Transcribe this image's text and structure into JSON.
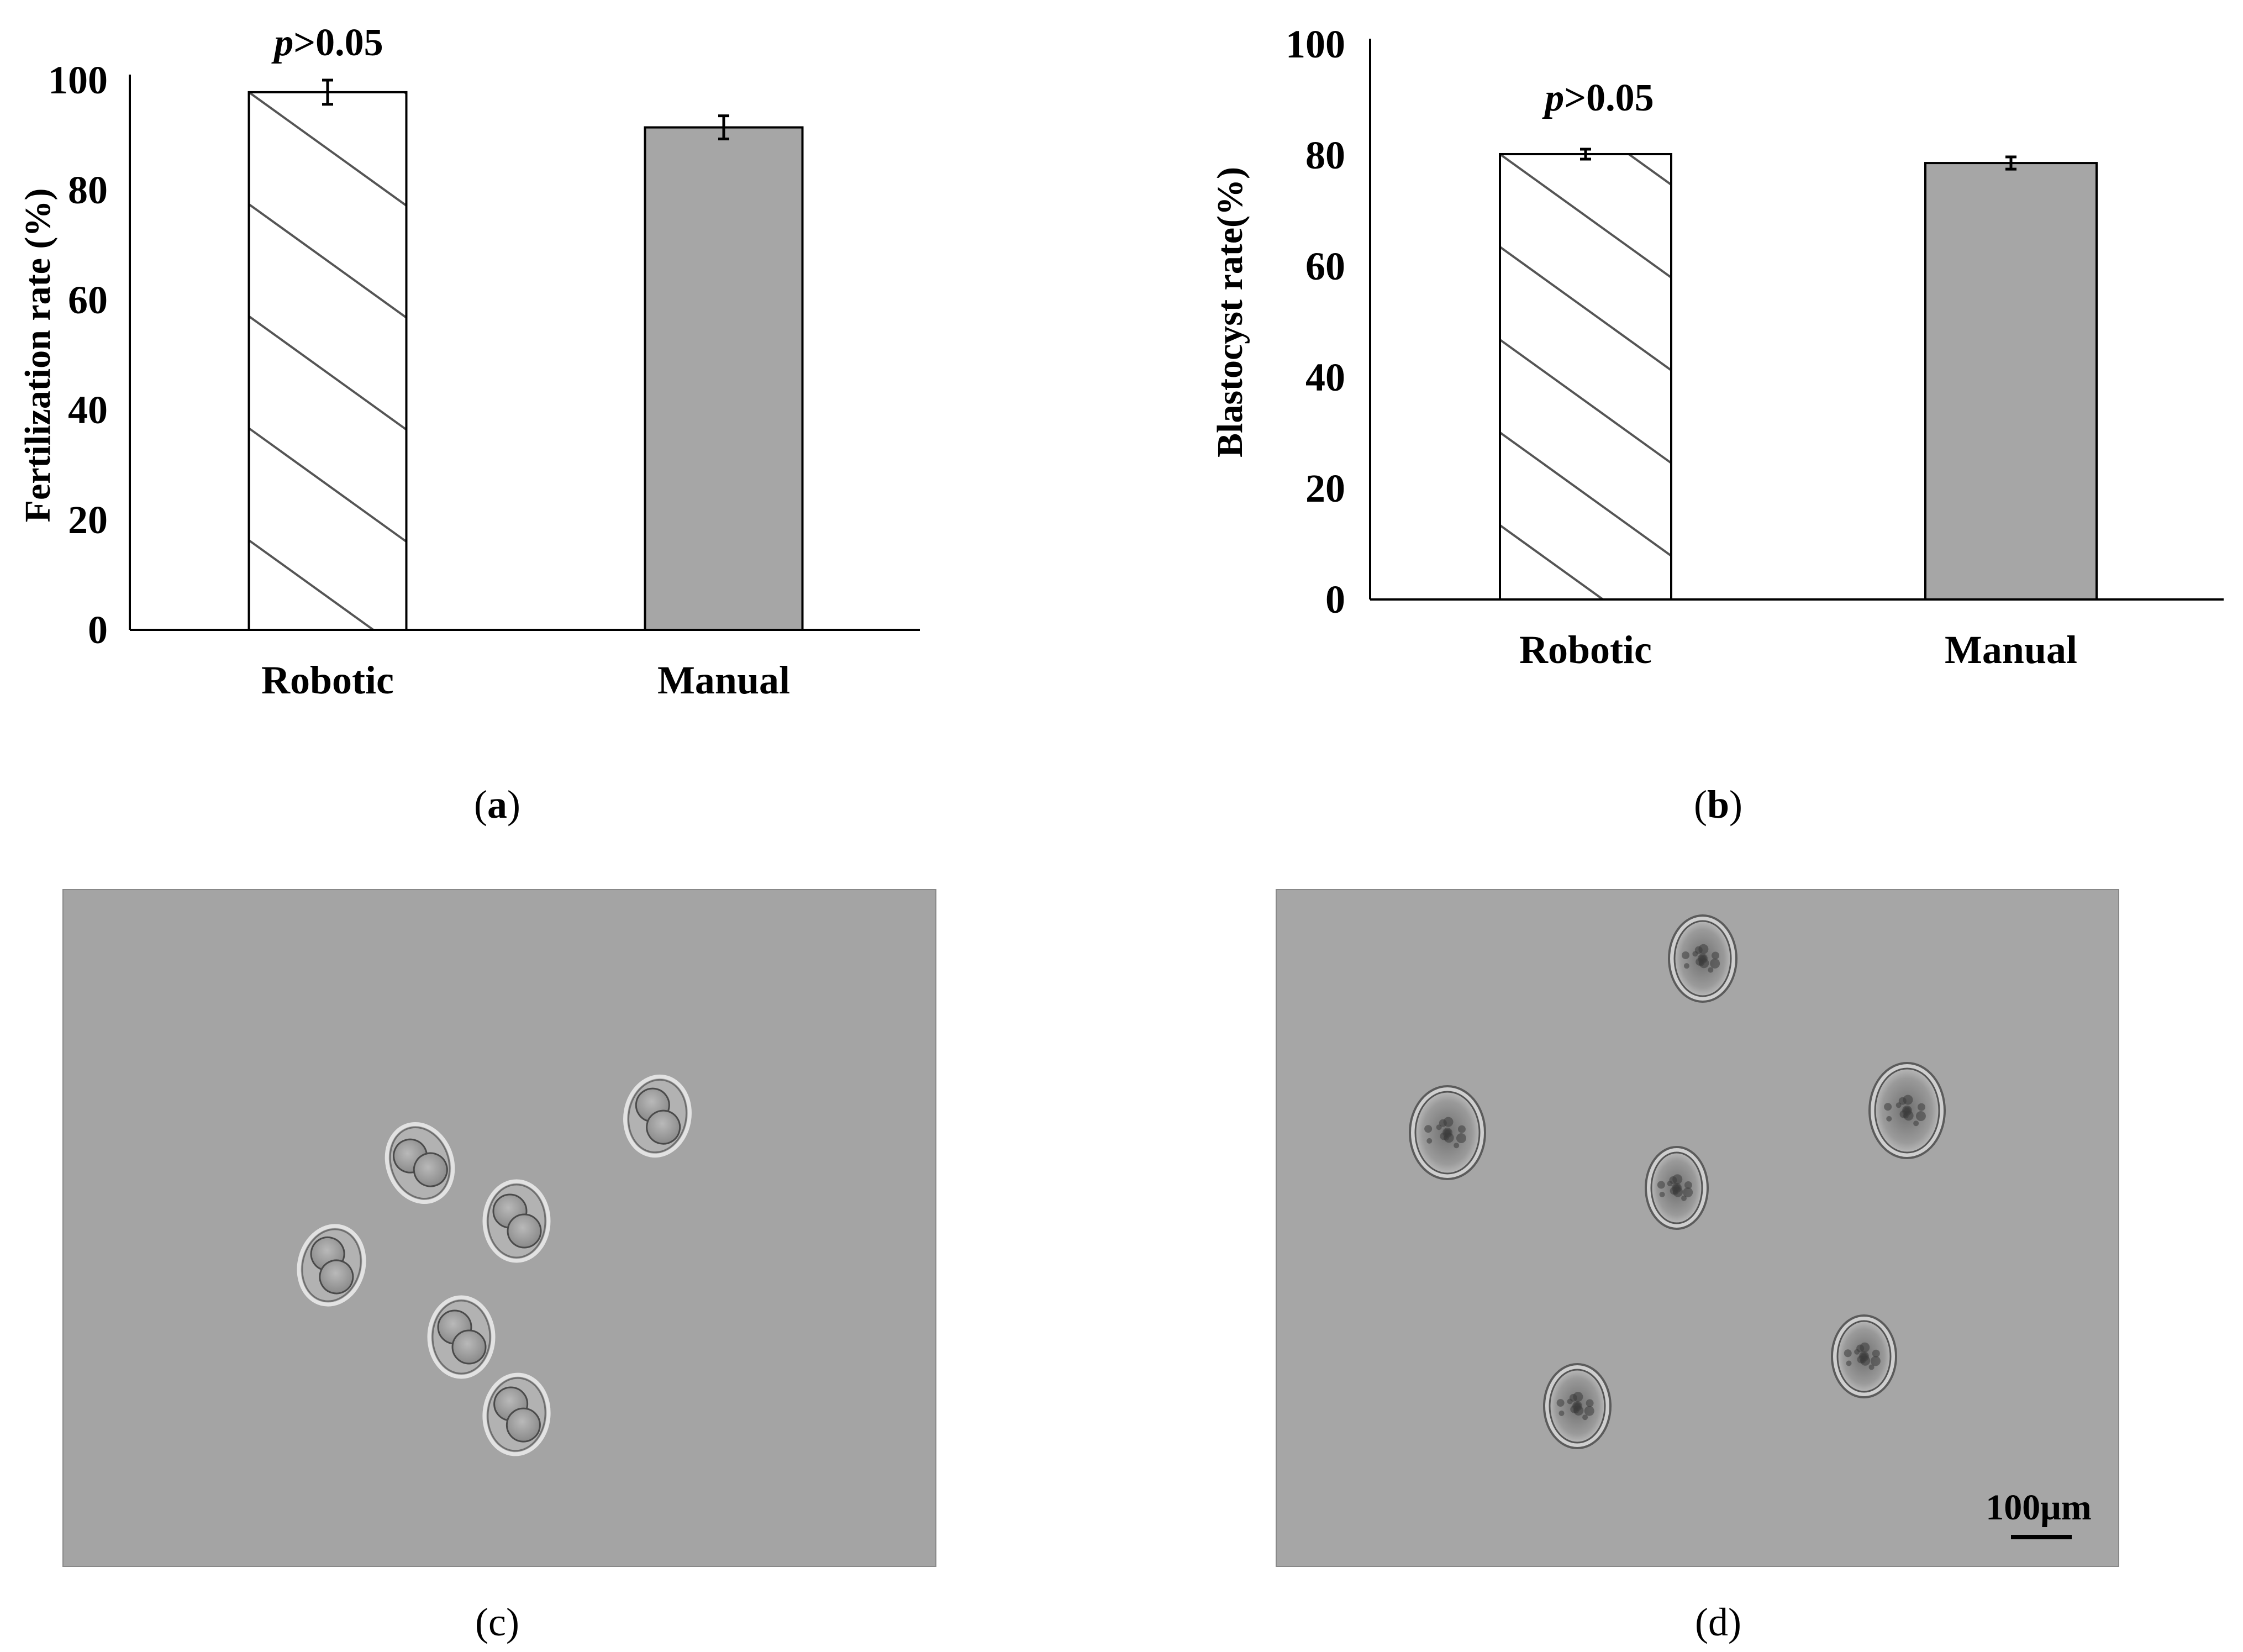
{
  "panels": {
    "a": {
      "caption_open": "(",
      "caption_letter": "a",
      "caption_close": ")"
    },
    "b": {
      "caption_open": "(",
      "caption_letter": "b",
      "caption_close": ")"
    },
    "c": {
      "caption": "(c)"
    },
    "d": {
      "caption": "(d)",
      "scale_bar_label": "100μm"
    }
  },
  "chart_data": [
    {
      "type": "bar",
      "categories": [
        "Robotic",
        "Manual"
      ],
      "values": [
        97.8,
        91.4
      ],
      "errors": [
        2.2,
        2.1
      ],
      "bar_styles": [
        "hatched",
        "gray"
      ],
      "bar_colors": [
        "#ffffff",
        "#a6a6a6"
      ],
      "ylabel": "Fertilization rate (%)",
      "ylim": [
        0,
        100
      ],
      "yticks": [
        0,
        20,
        40,
        60,
        80,
        100
      ],
      "ytick_labels": [
        "0",
        "20",
        "40",
        "60",
        "80",
        "100"
      ],
      "annotation": {
        "italic": "p",
        "rest": ">0.05"
      },
      "grid": false
    },
    {
      "type": "bar",
      "categories": [
        "Robotic",
        "Manual"
      ],
      "values": [
        80.2,
        78.6
      ],
      "errors": [
        0.9,
        1.1
      ],
      "bar_styles": [
        "hatched",
        "gray"
      ],
      "bar_colors": [
        "#ffffff",
        "#a6a6a6"
      ],
      "ylabel": "Blastocyst rate(%)",
      "ylim": [
        0,
        100
      ],
      "yticks": [
        0,
        20,
        40,
        60,
        80,
        100
      ],
      "ytick_labels": [
        "0",
        "20",
        "40",
        "60",
        "80",
        "100"
      ],
      "annotation": {
        "italic": "p",
        "rest": ">0.05"
      },
      "grid": false
    }
  ]
}
